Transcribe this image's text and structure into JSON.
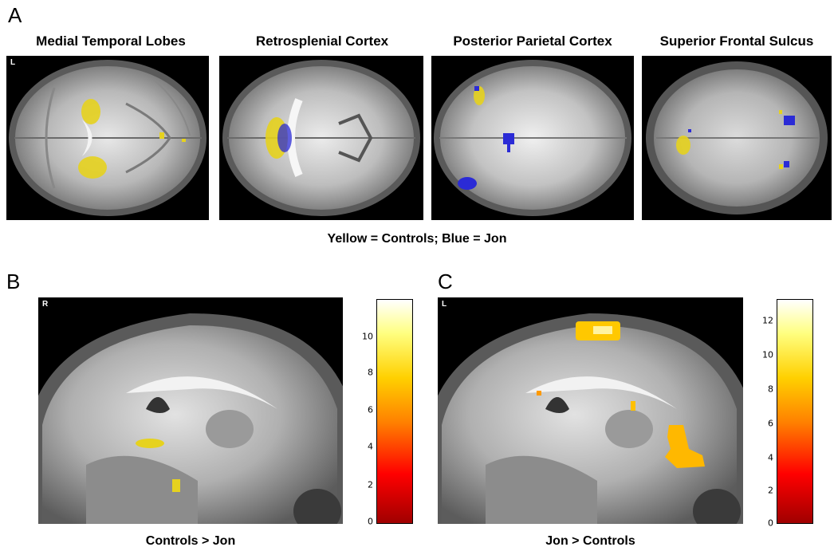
{
  "panels": {
    "a": {
      "letter": "A",
      "titles": [
        "Medial Temporal Lobes",
        "Retrosplenial Cortex",
        "Posterior Parietal Cortex",
        "Superior Frontal Sulcus"
      ],
      "side_marker": "L",
      "legend": "Yellow = Controls; Blue = Jon"
    },
    "b": {
      "letter": "B",
      "side_marker": "R",
      "caption": "Controls > Jon",
      "colorbar_ticks": [
        "10",
        "8",
        "6",
        "4",
        "2",
        "0"
      ]
    },
    "c": {
      "letter": "C",
      "side_marker": "L",
      "caption": "Jon > Controls",
      "colorbar_ticks": [
        "12",
        "10",
        "8",
        "6",
        "4",
        "2",
        "0"
      ]
    }
  },
  "colors": {
    "controls": "#e6d21e",
    "jon": "#2b2bd6",
    "background": "#000000"
  }
}
